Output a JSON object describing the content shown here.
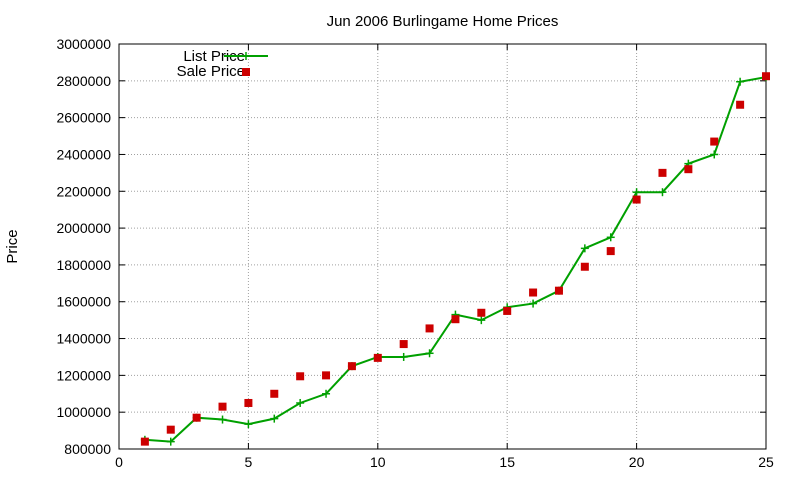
{
  "chart_data": {
    "type": "line",
    "title": "Jun 2006 Burlingame Home Prices",
    "xlabel": "",
    "ylabel": "Price",
    "xlim": [
      0,
      25
    ],
    "ylim": [
      800000,
      3000000
    ],
    "x_ticks": [
      0,
      5,
      10,
      15,
      20,
      25
    ],
    "y_ticks": [
      800000,
      1000000,
      1200000,
      1400000,
      1600000,
      1800000,
      2000000,
      2200000,
      2400000,
      2600000,
      2800000,
      3000000
    ],
    "grid": true,
    "legend_position": "top-left",
    "series": [
      {
        "name": "List Price",
        "style": "line-with-plus-markers",
        "color": "#00a000",
        "x": [
          1,
          2,
          3,
          4,
          5,
          6,
          7,
          8,
          9,
          10,
          11,
          12,
          13,
          14,
          15,
          16,
          17,
          18,
          19,
          20,
          21,
          22,
          23,
          24,
          25
        ],
        "values": [
          850000,
          840000,
          970000,
          960000,
          935000,
          965000,
          1050000,
          1100000,
          1250000,
          1300000,
          1300000,
          1320000,
          1530000,
          1500000,
          1570000,
          1590000,
          1660000,
          1890000,
          1950000,
          2195000,
          2195000,
          2350000,
          2400000,
          2795000,
          2820000
        ]
      },
      {
        "name": "Sale Price",
        "style": "square-markers",
        "color": "#cc0000",
        "x": [
          1,
          2,
          3,
          4,
          5,
          6,
          7,
          8,
          9,
          10,
          11,
          12,
          13,
          14,
          15,
          16,
          17,
          18,
          19,
          20,
          21,
          22,
          23,
          24,
          25
        ],
        "values": [
          840000,
          905000,
          970000,
          1030000,
          1050000,
          1100000,
          1195000,
          1200000,
          1250000,
          1295000,
          1370000,
          1455000,
          1505000,
          1540000,
          1550000,
          1650000,
          1660000,
          1790000,
          1875000,
          2155000,
          2300000,
          2320000,
          2470000,
          2670000,
          2825000
        ]
      }
    ]
  }
}
